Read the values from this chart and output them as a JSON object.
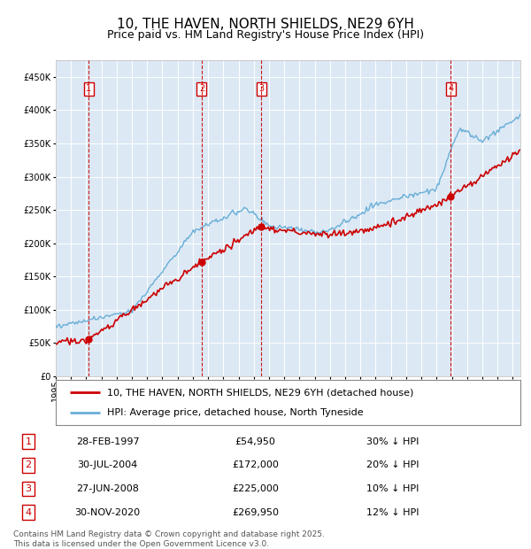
{
  "title": "10, THE HAVEN, NORTH SHIELDS, NE29 6YH",
  "subtitle": "Price paid vs. HM Land Registry's House Price Index (HPI)",
  "footer": "Contains HM Land Registry data © Crown copyright and database right 2025.\nThis data is licensed under the Open Government Licence v3.0.",
  "legend_line1": "10, THE HAVEN, NORTH SHIELDS, NE29 6YH (detached house)",
  "legend_line2": "HPI: Average price, detached house, North Tyneside",
  "transactions": [
    {
      "num": 1,
      "date": "28-FEB-1997",
      "price": 54950,
      "pct": "30%",
      "dir": "↓"
    },
    {
      "num": 2,
      "date": "30-JUL-2004",
      "price": 172000,
      "pct": "20%",
      "dir": "↓"
    },
    {
      "num": 3,
      "date": "27-JUN-2008",
      "price": 225000,
      "pct": "10%",
      "dir": "↓"
    },
    {
      "num": 4,
      "date": "30-NOV-2020",
      "price": 269950,
      "pct": "12%",
      "dir": "↓"
    }
  ],
  "transaction_dates_decimal": [
    1997.16,
    2004.58,
    2008.49,
    2020.92
  ],
  "transaction_prices": [
    54950,
    172000,
    225000,
    269950
  ],
  "ylim": [
    0,
    475000
  ],
  "yticks": [
    0,
    50000,
    100000,
    150000,
    200000,
    250000,
    300000,
    350000,
    400000,
    450000
  ],
  "xlim_start": 1995.0,
  "xlim_end": 2025.5,
  "bg_color": "#dce9f5",
  "grid_color": "#ffffff",
  "hpi_color": "#6aaed6",
  "price_color": "#cc0000",
  "vline_color": "#cc0000",
  "box_color": "#cc0000",
  "title_fontsize": 11,
  "subtitle_fontsize": 9,
  "tick_fontsize": 7,
  "legend_fontsize": 8,
  "table_fontsize": 8,
  "footer_fontsize": 6.5
}
